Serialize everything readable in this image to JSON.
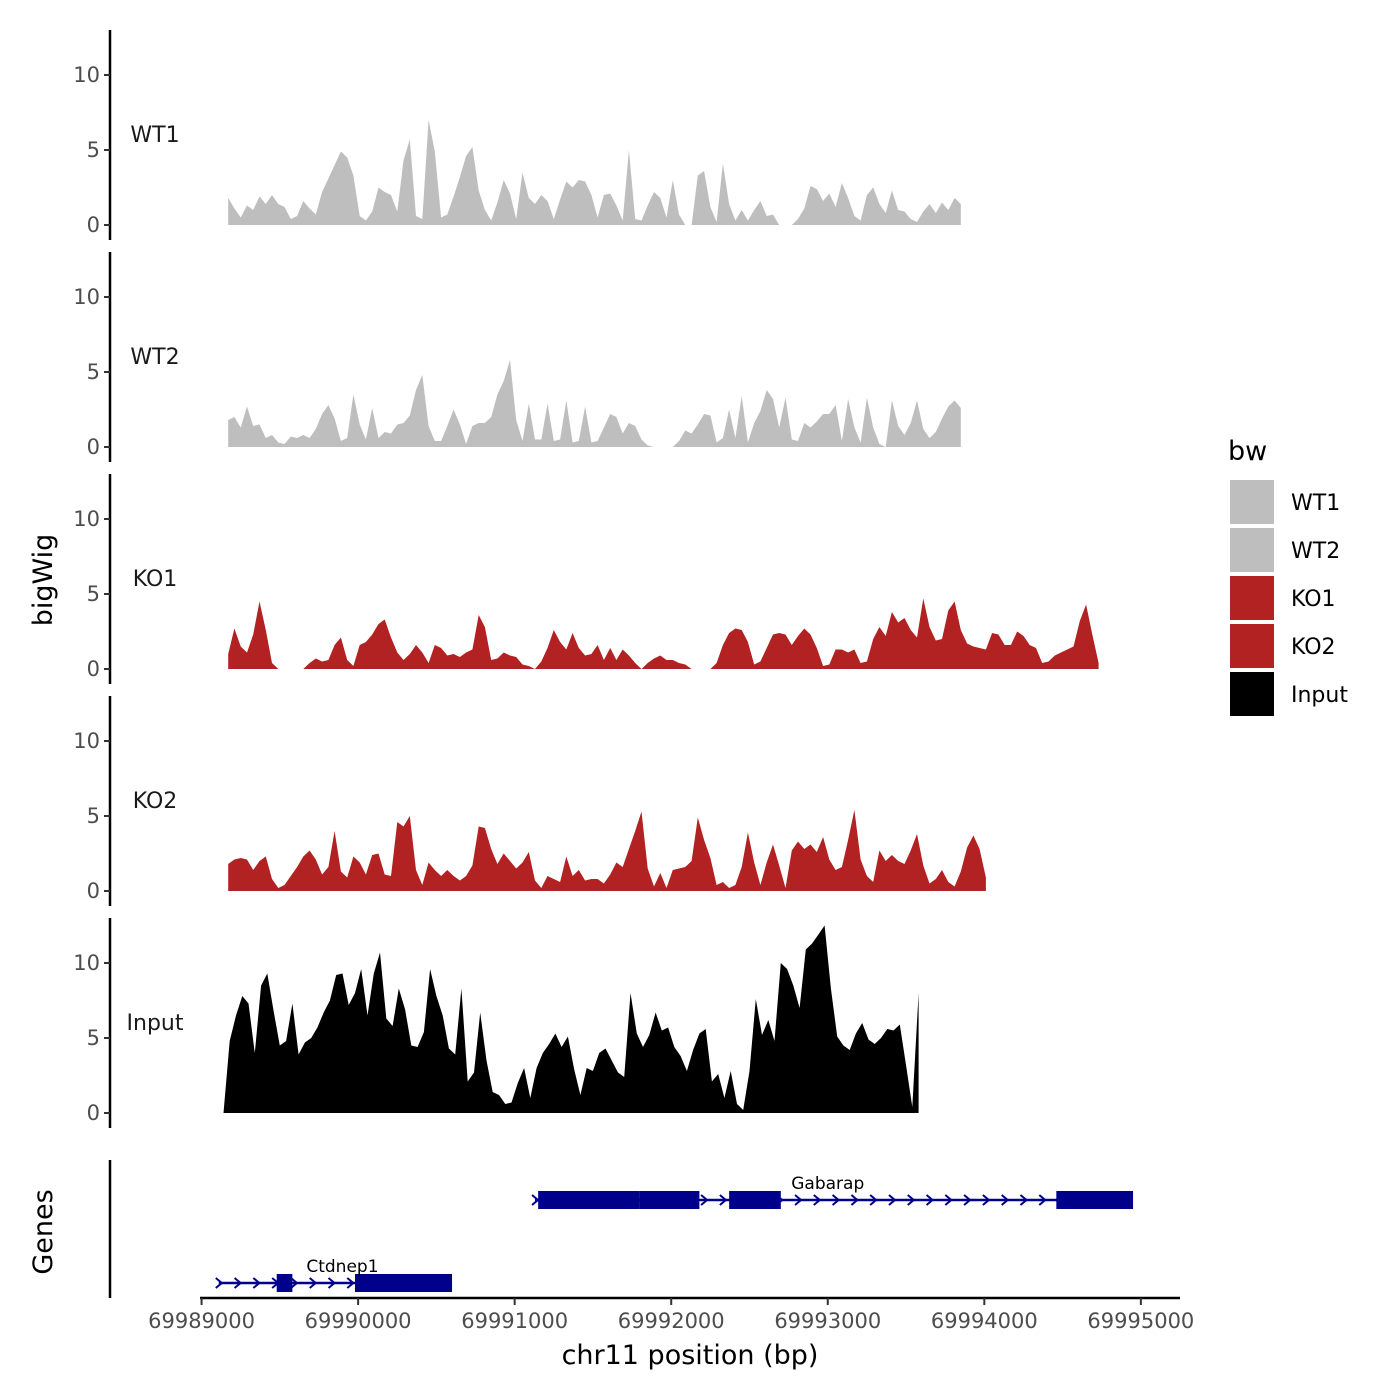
{
  "chart_data": {
    "type": "area",
    "xlabel": "chr11 position (bp)",
    "ylabel": "bigWig",
    "genes_label": "Genes",
    "xlim": [
      69988990,
      69995250
    ],
    "ylim": [
      0,
      13
    ],
    "x_ticks": [
      {
        "value": 69989000,
        "label": "69989000"
      },
      {
        "value": 69990000,
        "label": "69990000"
      },
      {
        "value": 69991000,
        "label": "69991000"
      },
      {
        "value": 69992000,
        "label": "69992000"
      },
      {
        "value": 69993000,
        "label": "69993000"
      },
      {
        "value": 69994000,
        "label": "69994000"
      },
      {
        "value": 69995000,
        "label": "69995000"
      }
    ],
    "y_ticks": [
      {
        "value": 0,
        "label": "0"
      },
      {
        "value": 5,
        "label": "5"
      },
      {
        "value": 10,
        "label": "10"
      }
    ],
    "legend": {
      "title": "bw",
      "entries": [
        {
          "label": "WT1",
          "color": "#bebebe"
        },
        {
          "label": "WT2",
          "color": "#bebebe"
        },
        {
          "label": "KO1",
          "color": "#b22222"
        },
        {
          "label": "KO2",
          "color": "#b22222"
        },
        {
          "label": "Input",
          "color": "#000000"
        }
      ]
    },
    "series": [
      {
        "name": "WT1",
        "color": "#bebebe",
        "x_start": 69989170,
        "step": 40,
        "values": [
          1.8,
          1.1,
          0.5,
          1.3,
          1.0,
          1.9,
          1.4,
          2.0,
          1.4,
          1.2,
          0.4,
          0.6,
          1.6,
          1.1,
          0.7,
          2.2,
          3.1,
          4.0,
          4.9,
          4.5,
          3.3,
          0.6,
          0.3,
          0.9,
          2.5,
          2.2,
          2.0,
          0.9,
          4.3,
          5.7,
          0.6,
          0.4,
          7.0,
          4.9,
          0.5,
          0.7,
          1.9,
          3.2,
          4.6,
          5.2,
          2.3,
          1.0,
          0.3,
          1.5,
          3.0,
          2.1,
          0.4,
          3.5,
          1.8,
          1.4,
          2.0,
          1.6,
          0.4,
          1.7,
          2.9,
          2.5,
          3.0,
          2.9,
          2.0,
          0.5,
          2.0,
          2.1,
          1.3,
          0.3,
          5.0,
          0.4,
          0.3,
          1.3,
          2.2,
          1.8,
          0.5,
          3.0,
          0.7,
          0,
          0,
          3.3,
          3.6,
          1.2,
          0.2,
          4.1,
          1.4,
          0.3,
          1.0,
          0.3,
          1.0,
          1.6,
          0.6,
          0.7,
          0,
          0,
          0,
          0.4,
          1.1,
          2.6,
          2.4,
          1.6,
          2.1,
          1.2,
          2.8,
          1.8,
          0.6,
          0.3,
          2.0,
          2.5,
          1.4,
          0.8,
          2.3,
          1.0,
          0.9,
          0.4,
          0.2,
          0.9,
          1.4,
          0.8,
          1.5,
          1.0,
          1.8,
          1.4
        ]
      },
      {
        "name": "WT2",
        "color": "#bebebe",
        "x_start": 69989170,
        "step": 40,
        "values": [
          1.8,
          2.0,
          1.3,
          2.7,
          1.4,
          1.5,
          0.6,
          0.8,
          0.3,
          0.2,
          0.7,
          0.6,
          0.8,
          0.6,
          1.2,
          2.2,
          2.8,
          1.9,
          0.4,
          0.6,
          3.5,
          1.5,
          0.5,
          2.6,
          0.6,
          1.0,
          0.9,
          1.5,
          1.6,
          2.1,
          3.8,
          4.8,
          1.4,
          0.4,
          0.4,
          1.4,
          2.5,
          1.5,
          0.2,
          1.4,
          1.6,
          1.6,
          2.0,
          3.5,
          4.4,
          5.8,
          1.8,
          0.4,
          2.9,
          0.5,
          0.5,
          2.9,
          0.4,
          0.5,
          3.1,
          0.3,
          0.4,
          2.7,
          0.3,
          0.4,
          1.3,
          2.2,
          2.0,
          0.9,
          1.6,
          1.4,
          0.5,
          0.1,
          0,
          0,
          0,
          0,
          0.4,
          1.1,
          0.9,
          1.5,
          2.2,
          2.1,
          0.3,
          0.6,
          2.5,
          0.6,
          3.4,
          0.3,
          1.6,
          2.4,
          3.8,
          3.2,
          1.3,
          3.3,
          0.5,
          0.4,
          1.6,
          1.3,
          1.7,
          2.2,
          2.2,
          2.8,
          0.4,
          3.2,
          1.3,
          0.3,
          3.3,
          1.3,
          0.2,
          0,
          3.1,
          1.4,
          0.8,
          1.6,
          3.1,
          1.2,
          0.6,
          1.0,
          1.9,
          2.7,
          3.1,
          2.6
        ]
      },
      {
        "name": "KO1",
        "color": "#b22222",
        "x_start": 69989170,
        "step": 40,
        "values": [
          1.0,
          2.7,
          1.5,
          1.1,
          2.3,
          4.5,
          2.6,
          0.4,
          0,
          0,
          0,
          0,
          0,
          0.4,
          0.7,
          0.5,
          0.6,
          1.6,
          2.1,
          0.6,
          0.2,
          1.6,
          1.8,
          2.3,
          3.0,
          3.3,
          2.1,
          1.1,
          0.6,
          1.0,
          1.6,
          1.1,
          0.4,
          1.6,
          1.4,
          0.9,
          1.0,
          0.8,
          1.1,
          1.3,
          3.6,
          2.8,
          0.6,
          0.7,
          1.1,
          0.9,
          0.8,
          0.3,
          0.2,
          0,
          0.5,
          1.4,
          2.6,
          1.8,
          1.3,
          2.4,
          1.4,
          0.9,
          1.0,
          1.6,
          0.6,
          1.4,
          0.6,
          1.3,
          0.9,
          0.4,
          0,
          0.4,
          0.7,
          0.9,
          0.6,
          0.6,
          0.4,
          0.3,
          0,
          0,
          0,
          0,
          0.4,
          1.6,
          2.4,
          2.7,
          2.6,
          1.8,
          0.3,
          0.5,
          1.4,
          2.3,
          2.4,
          2.3,
          1.6,
          2.2,
          2.7,
          2.3,
          1.4,
          0.2,
          0.3,
          1.3,
          1.3,
          1.1,
          1.3,
          0.4,
          0.5,
          2.0,
          2.8,
          2.2,
          3.8,
          3.1,
          3.4,
          2.6,
          2.1,
          4.7,
          2.8,
          1.9,
          2.0,
          3.9,
          4.5,
          2.6,
          1.7,
          1.5,
          1.4,
          1.3,
          2.4,
          2.3,
          1.6,
          1.6,
          2.5,
          2.2,
          1.6,
          1.4,
          0.4,
          0.5,
          0.9,
          1.1,
          1.3,
          1.5,
          3.2,
          4.3,
          2.3,
          0.4
        ]
      },
      {
        "name": "KO2",
        "color": "#b22222",
        "x_start": 69989170,
        "step": 40,
        "values": [
          1.8,
          2.1,
          2.2,
          2.1,
          1.4,
          2.0,
          2.3,
          0.8,
          0.2,
          0.4,
          1.0,
          1.6,
          2.3,
          2.7,
          2.1,
          1.1,
          1.6,
          4.0,
          1.3,
          0.9,
          2.3,
          1.9,
          1.1,
          2.4,
          2.5,
          1.1,
          1.0,
          4.6,
          4.3,
          5.0,
          1.4,
          0.4,
          1.9,
          1.4,
          1.0,
          1.4,
          1.0,
          0.7,
          1.0,
          1.7,
          4.3,
          4.2,
          2.8,
          1.8,
          2.5,
          2.0,
          1.5,
          1.9,
          2.6,
          0.7,
          0.2,
          1.0,
          0.8,
          0.6,
          2.3,
          1.0,
          1.4,
          0.7,
          0.8,
          0.8,
          0.5,
          1.1,
          1.9,
          1.6,
          2.8,
          4.0,
          5.3,
          1.5,
          0.3,
          1.2,
          0.2,
          1.4,
          1.5,
          1.6,
          2.0,
          4.9,
          3.4,
          2.2,
          0.4,
          0.6,
          0.2,
          0.4,
          1.6,
          3.9,
          1.9,
          0.4,
          1.9,
          3.1,
          1.7,
          0.2,
          2.7,
          3.3,
          2.8,
          3.1,
          2.6,
          3.6,
          2.1,
          1.4,
          1.6,
          3.4,
          5.4,
          2.1,
          1.0,
          0.6,
          2.7,
          2.0,
          2.4,
          2.0,
          1.8,
          2.7,
          3.8,
          1.7,
          0.5,
          0.8,
          1.4,
          0.6,
          0.3,
          1.3,
          2.9,
          3.7,
          2.8,
          0.9
        ]
      },
      {
        "name": "Input",
        "color": "#000000",
        "x_start": 69989140,
        "step": 40,
        "values": [
          0,
          4.8,
          6.5,
          7.8,
          7.3,
          4.0,
          8.5,
          9.3,
          6.8,
          4.5,
          4.8,
          7.3,
          3.9,
          4.7,
          5.0,
          5.7,
          6.7,
          7.5,
          9.2,
          9.3,
          7.2,
          8.0,
          9.6,
          6.5,
          9.3,
          10.7,
          6.3,
          5.8,
          8.3,
          6.9,
          4.5,
          4.4,
          5.4,
          9.6,
          7.8,
          6.5,
          4.3,
          3.9,
          8.3,
          2.1,
          2.7,
          6.7,
          3.5,
          1.4,
          1.2,
          0.6,
          0.7,
          2.0,
          3.0,
          1.0,
          3.0,
          4.0,
          4.6,
          5.3,
          4.4,
          5.1,
          2.9,
          1.2,
          3.0,
          2.8,
          4.0,
          4.3,
          3.5,
          2.7,
          2.4,
          8.0,
          5.3,
          4.4,
          5.2,
          6.7,
          5.5,
          5.7,
          4.4,
          3.8,
          2.8,
          4.2,
          5.3,
          5.6,
          2.1,
          2.6,
          1.0,
          2.8,
          0.6,
          0.2,
          2.8,
          7.6,
          5.2,
          6.2,
          4.8,
          10.0,
          9.6,
          8.5,
          7.0,
          10.9,
          11.3,
          11.9,
          12.5,
          8.3,
          5.1,
          4.5,
          4.2,
          5.3,
          6.0,
          4.9,
          4.6,
          5.0,
          5.6,
          5.5,
          5.9,
          3.2,
          0.4,
          8.0
        ]
      }
    ],
    "genes": [
      {
        "name": "Gabarap",
        "strand": "+",
        "start": 69991130,
        "end": 69994950,
        "exons": [
          [
            69991150,
            69991800
          ],
          [
            69991800,
            69992180
          ],
          [
            69992370,
            69992700
          ],
          [
            69994460,
            69994950
          ]
        ],
        "label_x": 69993000
      },
      {
        "name": "Ctdnep1",
        "strand": "+",
        "start": 69989110,
        "end": 69990600,
        "exons": [
          [
            69989480,
            69989580
          ],
          [
            69989980,
            69990600
          ]
        ],
        "label_x": 69989900
      }
    ]
  }
}
